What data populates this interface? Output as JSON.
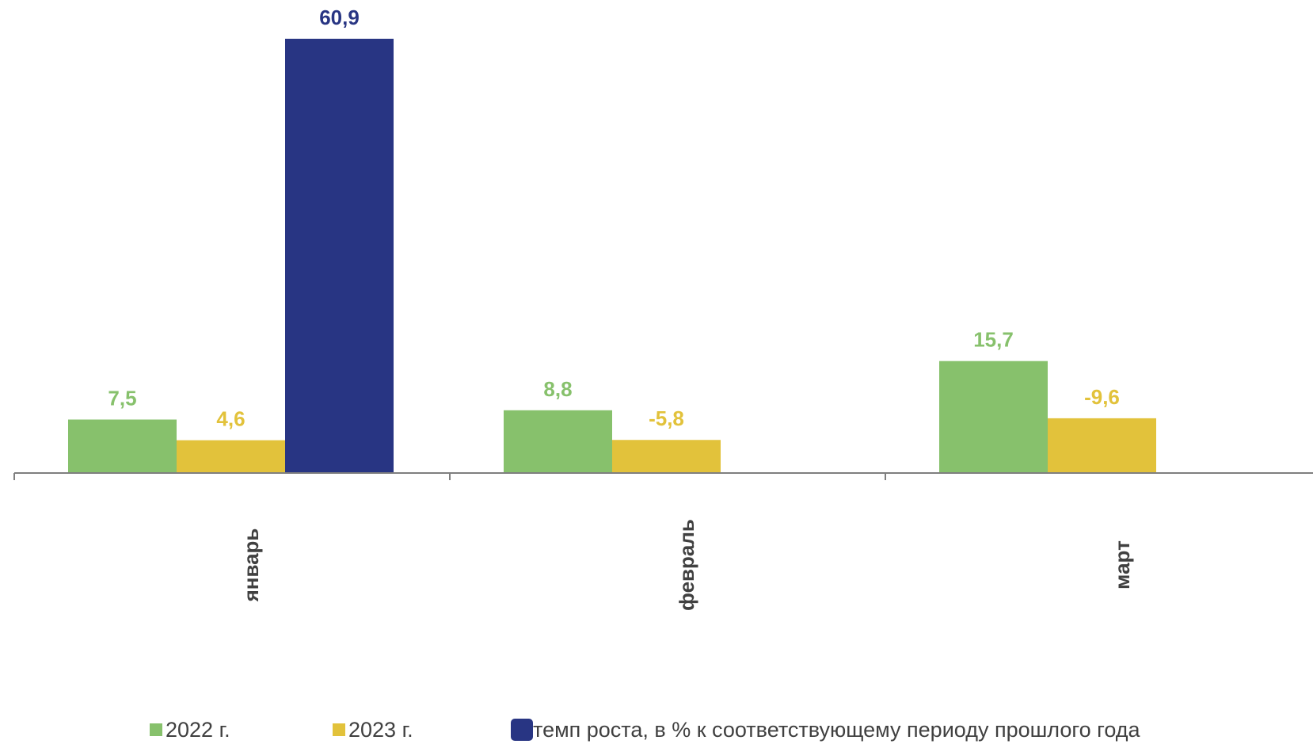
{
  "colors": {
    "series_2022": "#87c16c",
    "series_2023": "#e2c23b",
    "series_growth": "#283583",
    "axis": "#7f7f7f",
    "category_text": "#404040"
  },
  "chart_data": {
    "type": "bar",
    "categories": [
      "январь",
      "февраль",
      "март"
    ],
    "series": [
      {
        "name": "2022 г.",
        "values": [
          7.5,
          8.8,
          15.7
        ],
        "labels": [
          "7,5",
          "8,8",
          "15,7"
        ]
      },
      {
        "name": "2023 г.",
        "values": [
          4.6,
          -5.8,
          -9.6
        ],
        "labels": [
          "4,6",
          "-5,8",
          "-9,6"
        ]
      },
      {
        "name": "темп роста, в % к соответствующему периоду прошлого года",
        "values": [
          60.9,
          null,
          null
        ],
        "labels": [
          "60,9",
          "",
          ""
        ]
      }
    ],
    "legend_position": "bottom",
    "grid": false
  }
}
